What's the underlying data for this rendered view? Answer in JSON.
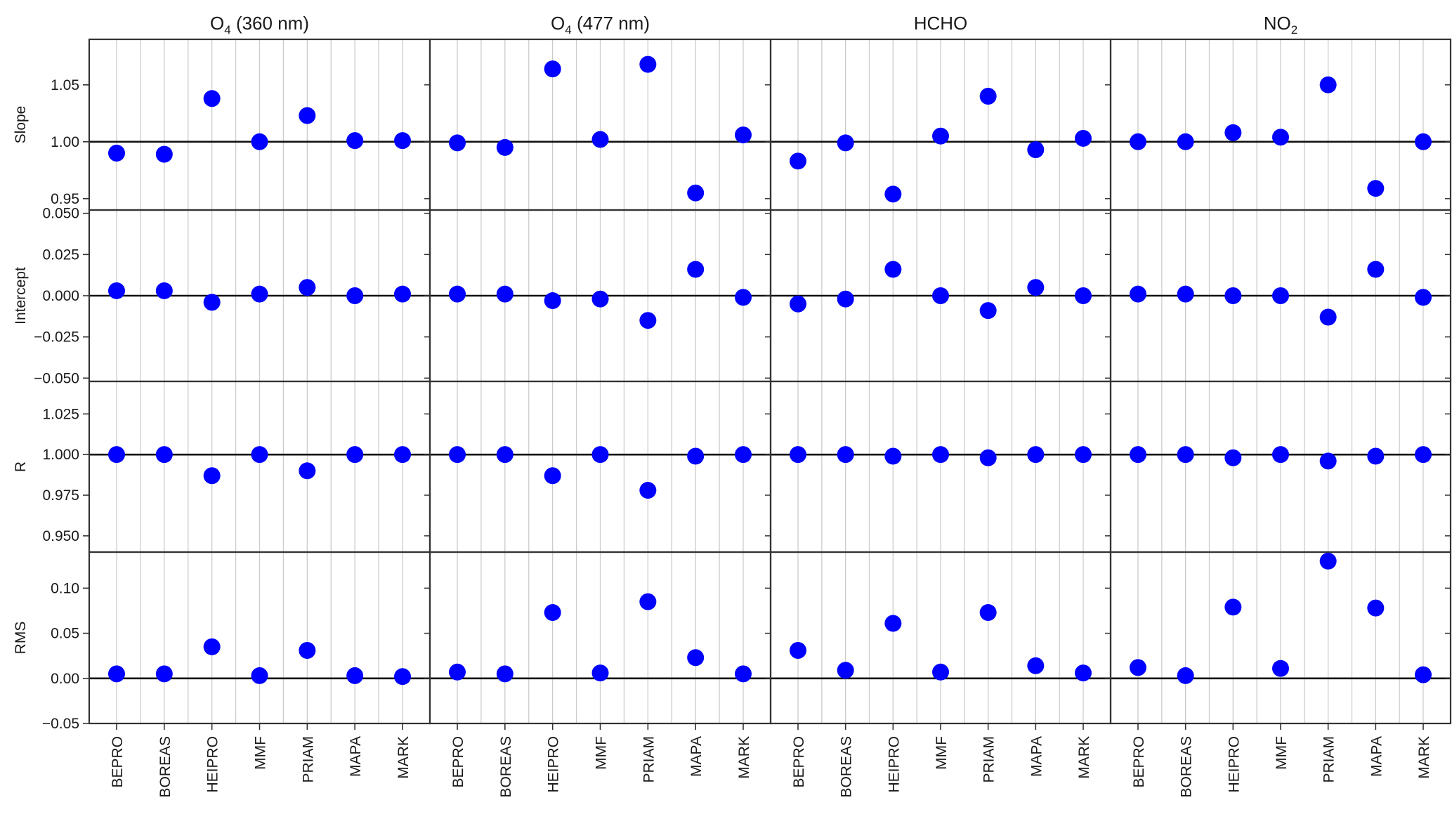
{
  "chart_data": {
    "type": "scatter",
    "categories": [
      "BEPRO",
      "BOREAS",
      "HEIPRO",
      "MMF",
      "PRIAM",
      "MAPA",
      "MARK"
    ],
    "columns": [
      {
        "title_main": "O",
        "title_sub": "4",
        "title_rest": "  (360 nm)"
      },
      {
        "title_main": "O",
        "title_sub": "4",
        "title_rest": "  (477 nm)"
      },
      {
        "title_main": "HCHO",
        "title_sub": "",
        "title_rest": ""
      },
      {
        "title_main": "NO",
        "title_sub": "2",
        "title_rest": ""
      }
    ],
    "rows": [
      {
        "ylabel": "Slope",
        "ylim": [
          0.94,
          1.09
        ],
        "ref": 1.0,
        "ticks": [
          0.95,
          1.0,
          1.05
        ],
        "tick_labels": [
          "0.95",
          "1.00",
          "1.05"
        ],
        "series": [
          {
            "values": [
              0.99,
              0.989,
              1.038,
              1.0,
              1.023,
              1.001,
              1.001
            ]
          },
          {
            "values": [
              0.999,
              0.995,
              1.064,
              1.002,
              1.068,
              0.955,
              1.006
            ]
          },
          {
            "values": [
              0.983,
              0.999,
              0.954,
              1.005,
              1.04,
              0.993,
              1.003
            ]
          },
          {
            "values": [
              1.0,
              1.0,
              1.008,
              1.004,
              1.05,
              0.959,
              1.0
            ]
          }
        ]
      },
      {
        "ylabel": "Intercept",
        "ylim": [
          -0.052,
          0.052
        ],
        "ref": 0.0,
        "ticks": [
          -0.05,
          -0.025,
          0.0,
          0.025,
          0.05
        ],
        "tick_labels": [
          "−0.050",
          "−0.025",
          "0.000",
          "0.025",
          "0.050"
        ],
        "series": [
          {
            "values": [
              0.003,
              0.003,
              -0.004,
              0.001,
              0.005,
              0.0,
              0.001
            ]
          },
          {
            "values": [
              0.001,
              0.001,
              -0.003,
              -0.002,
              -0.015,
              0.016,
              -0.001
            ]
          },
          {
            "values": [
              -0.005,
              -0.002,
              0.016,
              0.0,
              -0.009,
              0.005,
              0.0
            ]
          },
          {
            "values": [
              0.001,
              0.001,
              0.0,
              0.0,
              -0.013,
              0.016,
              -0.001
            ]
          }
        ]
      },
      {
        "ylabel": "R",
        "ylim": [
          0.94,
          1.045
        ],
        "ref": 1.0,
        "ticks": [
          0.95,
          0.975,
          1.0,
          1.025
        ],
        "tick_labels": [
          "0.950",
          "0.975",
          "1.000",
          "1.025"
        ],
        "series": [
          {
            "values": [
              1.0,
              1.0,
              0.987,
              1.0,
              0.99,
              1.0,
              1.0
            ]
          },
          {
            "values": [
              1.0,
              1.0,
              0.987,
              1.0,
              0.978,
              0.999,
              1.0
            ]
          },
          {
            "values": [
              1.0,
              1.0,
              0.999,
              1.0,
              0.998,
              1.0,
              1.0
            ]
          },
          {
            "values": [
              1.0,
              1.0,
              0.998,
              1.0,
              0.996,
              0.999,
              1.0
            ]
          }
        ]
      },
      {
        "ylabel": "RMS",
        "ylim": [
          -0.05,
          0.14
        ],
        "ref": 0.0,
        "ticks": [
          -0.05,
          0.0,
          0.05,
          0.1
        ],
        "tick_labels": [
          "−0.05",
          "0.00",
          "0.05",
          "0.10"
        ],
        "series": [
          {
            "values": [
              0.005,
              0.005,
              0.035,
              0.003,
              0.031,
              0.003,
              0.002
            ]
          },
          {
            "values": [
              0.007,
              0.005,
              0.073,
              0.006,
              0.085,
              0.023,
              0.005
            ]
          },
          {
            "values": [
              0.031,
              0.009,
              0.061,
              0.007,
              0.073,
              0.014,
              0.006
            ]
          },
          {
            "values": [
              0.012,
              0.003,
              0.079,
              0.011,
              0.13,
              0.078,
              0.004
            ]
          }
        ]
      }
    ],
    "marker_color": "#0000ff",
    "grid": "vertical",
    "legend": "none"
  }
}
